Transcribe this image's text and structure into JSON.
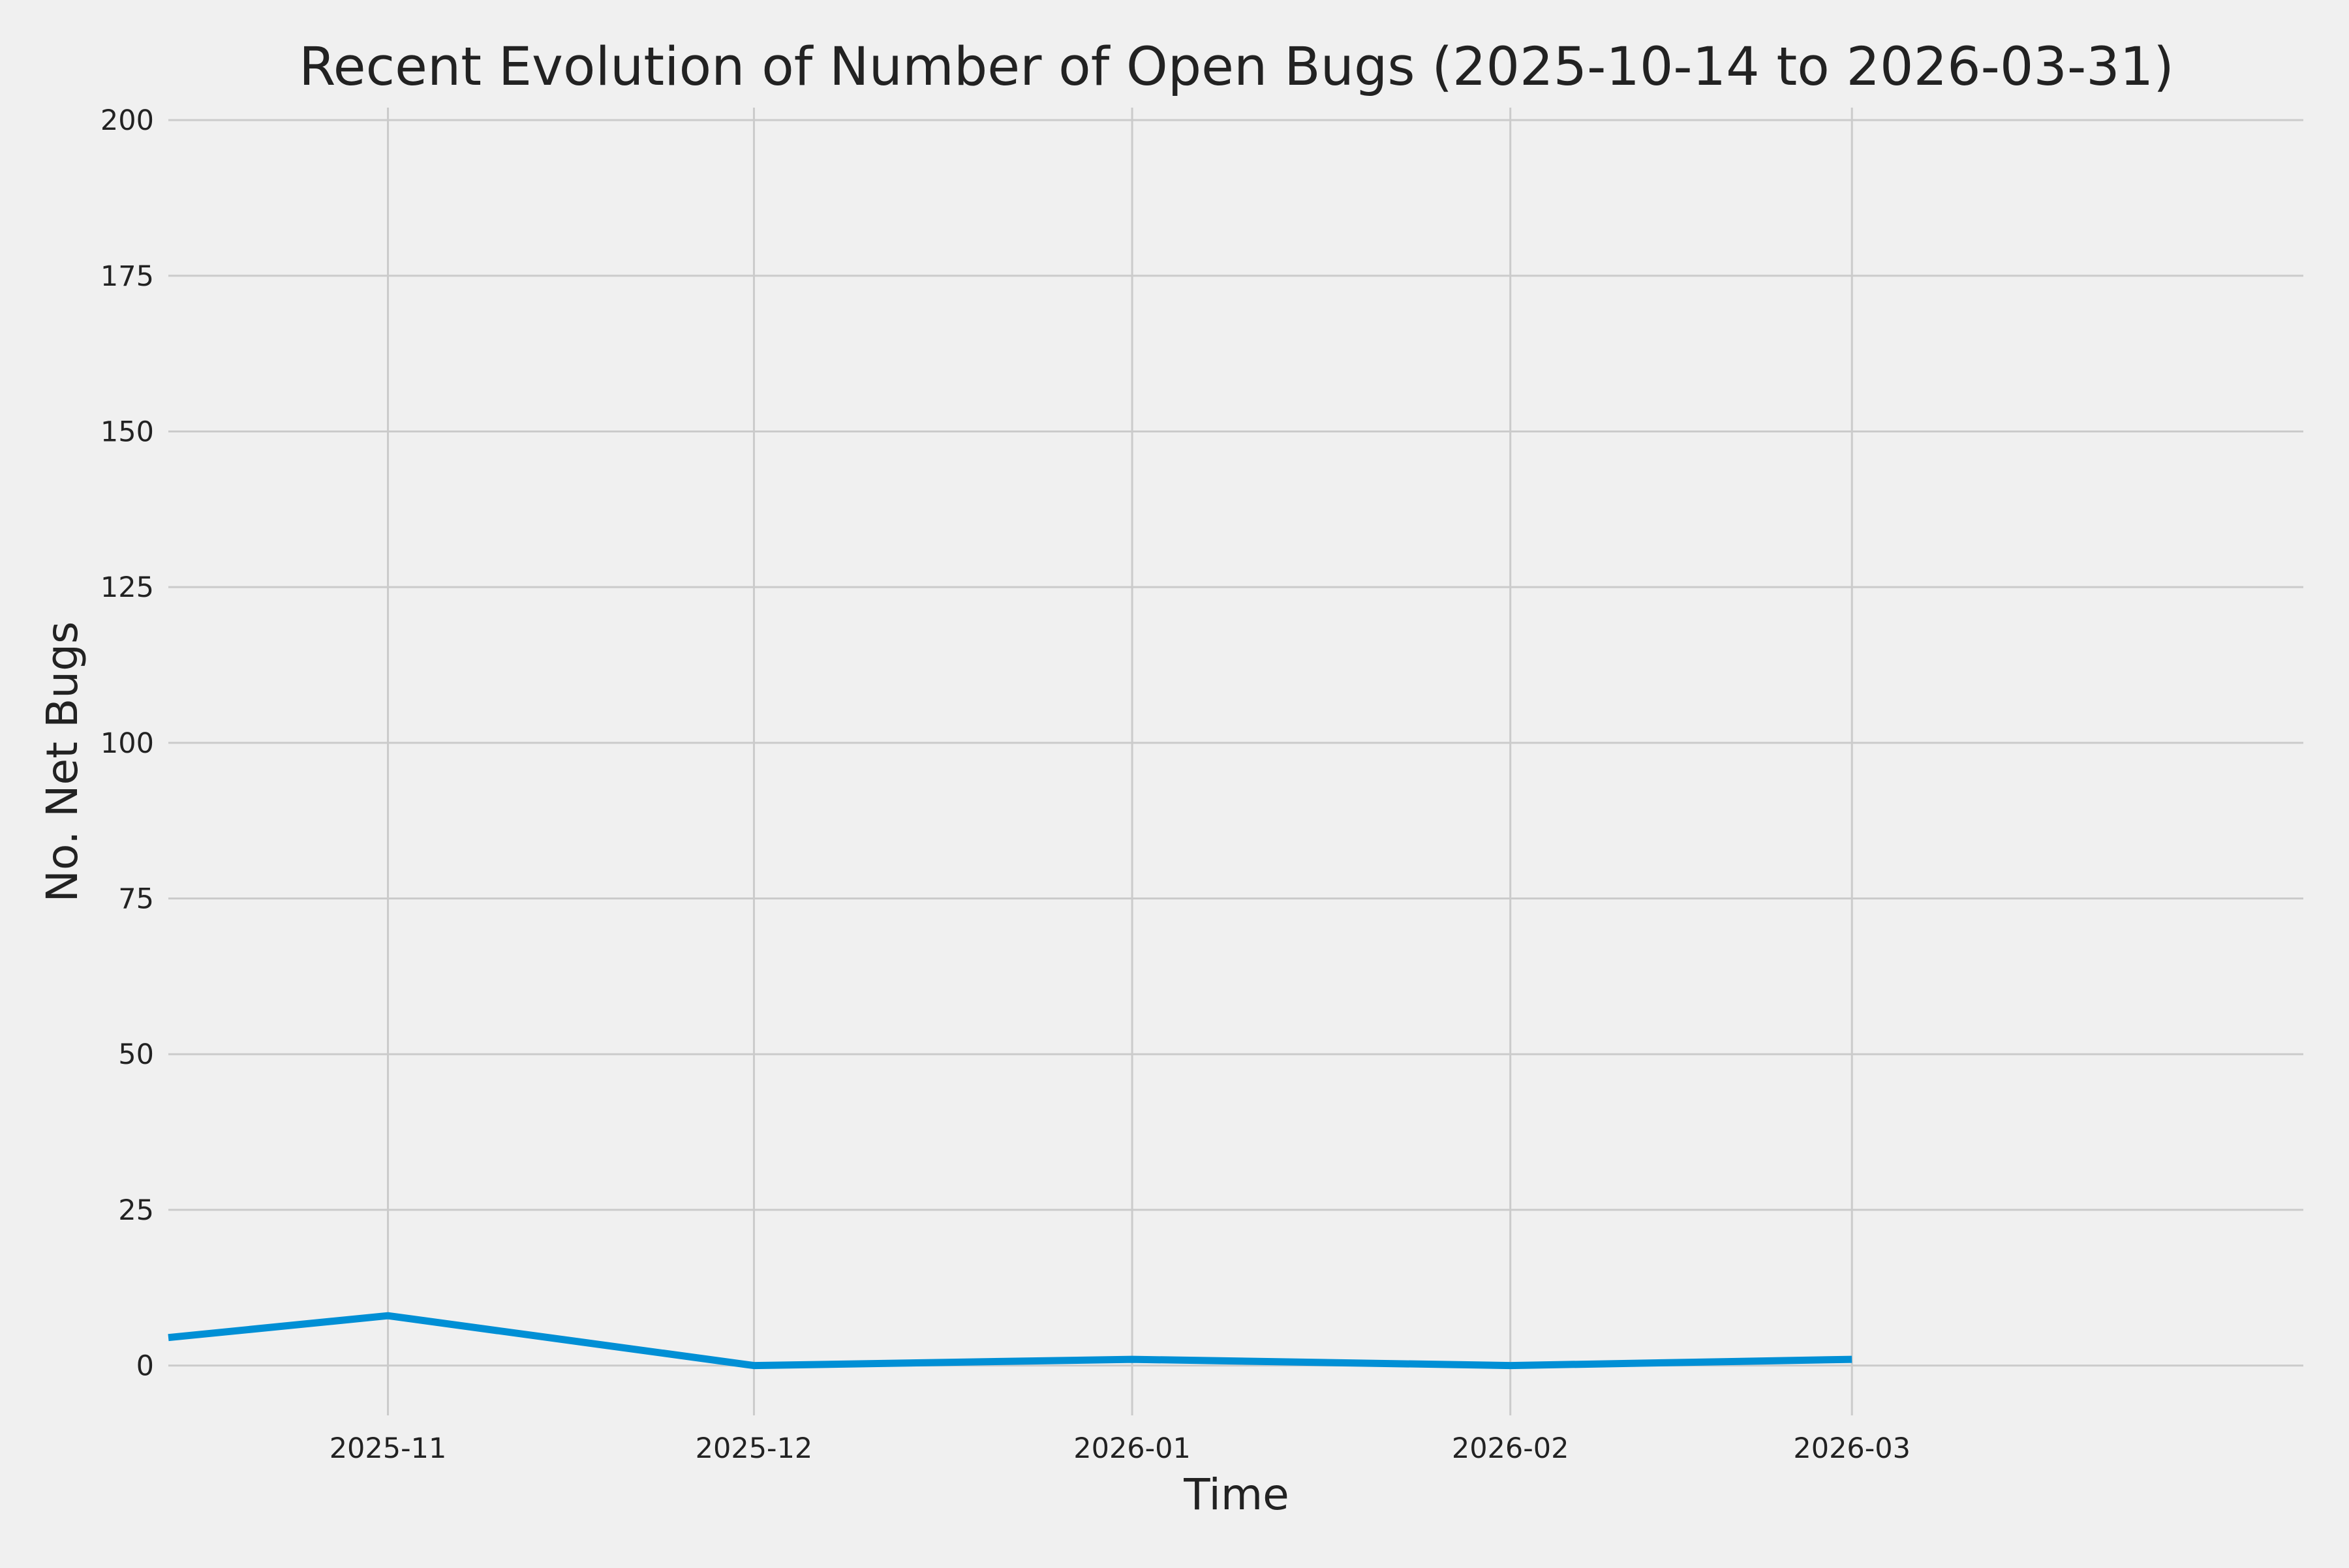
{
  "chart_data": {
    "type": "line",
    "title": "Recent Evolution of Number of Open Bugs (2025-10-14 to 2026-03-31)",
    "xlabel": "Time",
    "ylabel": "No. Net Bugs",
    "x_tick_labels": [
      "2025-11",
      "2025-12",
      "2026-01",
      "2026-02",
      "2026-03"
    ],
    "x_ticks": [
      "2025-11-01",
      "2025-12-01",
      "2026-01-01",
      "2026-02-01",
      "2026-03-01"
    ],
    "y_ticks": [
      0,
      25,
      50,
      75,
      100,
      125,
      150,
      175,
      200
    ],
    "xlim": [
      "2025-10-14",
      "2026-04-07"
    ],
    "ylim": [
      -8,
      202
    ],
    "grid": true,
    "legend": "none",
    "series": [
      {
        "x": [
          "2025-10-14",
          "2025-11-01",
          "2025-12-01",
          "2026-01-01",
          "2026-02-01",
          "2026-03-01"
        ],
        "values": [
          4.5,
          8,
          0,
          1,
          0,
          1
        ],
        "color": "#008fd5"
      }
    ],
    "colors": {
      "background": "#f0f0f0",
      "grid": "#cbcbcb",
      "line": "#008fd5",
      "text": "#222222"
    }
  }
}
